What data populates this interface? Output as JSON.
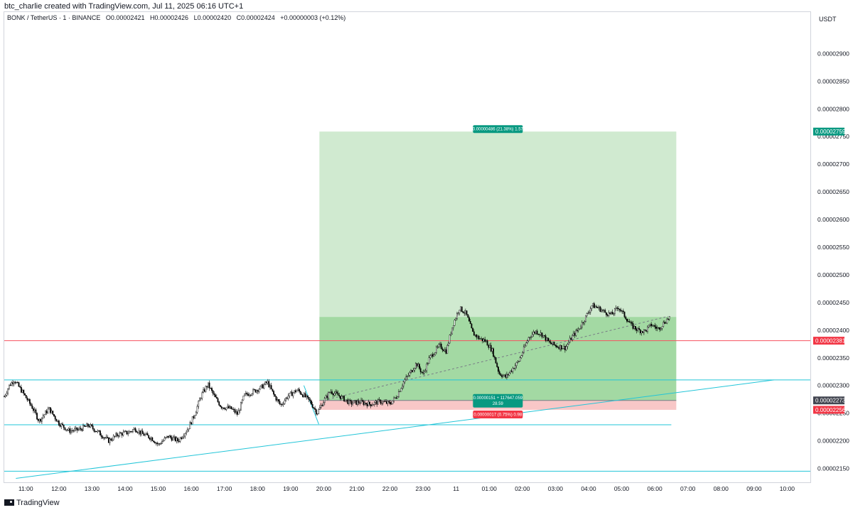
{
  "header": {
    "caption": "btc_charlie created with TradingView.com, Jul 11, 2025 06:16 UTC+1",
    "symbol": "BONK / TetherUS · 1 · BINANCE",
    "ohlc": [
      {
        "label": "O",
        "value": "0.00002421"
      },
      {
        "label": "H",
        "value": "0.00002426"
      },
      {
        "label": "L",
        "value": "0.00002420"
      },
      {
        "label": "C",
        "value": "0.00002424"
      }
    ],
    "change": "+0.00000003 (+0.12%)"
  },
  "footer": {
    "brand": "TradingView"
  },
  "chart_data": {
    "type": "candlestick",
    "currency": "USDT",
    "y_scale_multiplier": 1e-08,
    "ylim": [
      2125,
      2975
    ],
    "xlim_hours": [
      10.35,
      34.7
    ],
    "y_ticks": [
      {
        "v": 2150,
        "label": "0.00002150"
      },
      {
        "v": 2200,
        "label": "0.00002200"
      },
      {
        "v": 2250,
        "label": "0.00002250"
      },
      {
        "v": 2300,
        "label": "0.00002300"
      },
      {
        "v": 2350,
        "label": "0.00002350"
      },
      {
        "v": 2400,
        "label": "0.00002400"
      },
      {
        "v": 2450,
        "label": "0.00002450"
      },
      {
        "v": 2500,
        "label": "0.00002500"
      },
      {
        "v": 2550,
        "label": "0.00002550"
      },
      {
        "v": 2600,
        "label": "0.00002600"
      },
      {
        "v": 2650,
        "label": "0.00002650"
      },
      {
        "v": 2700,
        "label": "0.00002700"
      },
      {
        "v": 2750,
        "label": "0.00002750"
      },
      {
        "v": 2800,
        "label": "0.00002800"
      },
      {
        "v": 2850,
        "label": "0.00002850"
      },
      {
        "v": 2900,
        "label": "0.00002900"
      }
    ],
    "x_ticks": [
      {
        "h": 11,
        "label": "11:00"
      },
      {
        "h": 12,
        "label": "12:00"
      },
      {
        "h": 13,
        "label": "13:00"
      },
      {
        "h": 14,
        "label": "14:00"
      },
      {
        "h": 15,
        "label": "15:00"
      },
      {
        "h": 16,
        "label": "16:00"
      },
      {
        "h": 17,
        "label": "17:00"
      },
      {
        "h": 18,
        "label": "18:00"
      },
      {
        "h": 19,
        "label": "19:00"
      },
      {
        "h": 20,
        "label": "20:00"
      },
      {
        "h": 21,
        "label": "21:00"
      },
      {
        "h": 22,
        "label": "22:00"
      },
      {
        "h": 23,
        "label": "23:00"
      },
      {
        "h": 24,
        "label": "11"
      },
      {
        "h": 25,
        "label": "01:00"
      },
      {
        "h": 26,
        "label": "02:00"
      },
      {
        "h": 27,
        "label": "03:00"
      },
      {
        "h": 28,
        "label": "04:00"
      },
      {
        "h": 29,
        "label": "05:00"
      },
      {
        "h": 30,
        "label": "06:00"
      },
      {
        "h": 31,
        "label": "07:00"
      },
      {
        "h": 32,
        "label": "08:00"
      },
      {
        "h": 33,
        "label": "09:00"
      },
      {
        "h": 34,
        "label": "10:00"
      }
    ],
    "price_path": [
      [
        10.35,
        2280
      ],
      [
        10.5,
        2300
      ],
      [
        10.65,
        2310
      ],
      [
        10.9,
        2288
      ],
      [
        11.2,
        2260
      ],
      [
        11.4,
        2236
      ],
      [
        11.7,
        2258
      ],
      [
        12.0,
        2232
      ],
      [
        12.3,
        2218
      ],
      [
        12.6,
        2220
      ],
      [
        12.9,
        2228
      ],
      [
        13.2,
        2215
      ],
      [
        13.5,
        2200
      ],
      [
        13.8,
        2212
      ],
      [
        14.1,
        2215
      ],
      [
        14.3,
        2222
      ],
      [
        14.5,
        2213
      ],
      [
        14.8,
        2205
      ],
      [
        15.0,
        2193
      ],
      [
        15.3,
        2208
      ],
      [
        15.6,
        2200
      ],
      [
        15.9,
        2222
      ],
      [
        16.1,
        2248
      ],
      [
        16.3,
        2282
      ],
      [
        16.5,
        2302
      ],
      [
        16.7,
        2280
      ],
      [
        16.9,
        2262
      ],
      [
        17.2,
        2258
      ],
      [
        17.4,
        2248
      ],
      [
        17.6,
        2282
      ],
      [
        17.9,
        2290
      ],
      [
        18.1,
        2296
      ],
      [
        18.3,
        2306
      ],
      [
        18.5,
        2282
      ],
      [
        18.7,
        2264
      ],
      [
        18.9,
        2280
      ],
      [
        19.2,
        2292
      ],
      [
        19.4,
        2282
      ],
      [
        19.6,
        2270
      ],
      [
        19.8,
        2250
      ],
      [
        20.0,
        2272
      ],
      [
        20.2,
        2290
      ],
      [
        20.5,
        2280
      ],
      [
        20.8,
        2268
      ],
      [
        21.1,
        2270
      ],
      [
        21.4,
        2266
      ],
      [
        21.7,
        2271
      ],
      [
        22.0,
        2267
      ],
      [
        22.2,
        2280
      ],
      [
        22.4,
        2305
      ],
      [
        22.6,
        2322
      ],
      [
        22.8,
        2340
      ],
      [
        23.0,
        2320
      ],
      [
        23.2,
        2350
      ],
      [
        23.5,
        2372
      ],
      [
        23.7,
        2362
      ],
      [
        23.9,
        2410
      ],
      [
        24.1,
        2440
      ],
      [
        24.3,
        2430
      ],
      [
        24.5,
        2395
      ],
      [
        24.7,
        2385
      ],
      [
        24.9,
        2380
      ],
      [
        25.1,
        2362
      ],
      [
        25.3,
        2322
      ],
      [
        25.5,
        2315
      ],
      [
        25.7,
        2330
      ],
      [
        25.9,
        2345
      ],
      [
        26.2,
        2388
      ],
      [
        26.4,
        2398
      ],
      [
        26.6,
        2392
      ],
      [
        26.8,
        2378
      ],
      [
        27.0,
        2372
      ],
      [
        27.3,
        2368
      ],
      [
        27.5,
        2388
      ],
      [
        27.7,
        2402
      ],
      [
        27.9,
        2422
      ],
      [
        28.1,
        2445
      ],
      [
        28.3,
        2440
      ],
      [
        28.5,
        2432
      ],
      [
        28.7,
        2428
      ],
      [
        28.9,
        2442
      ],
      [
        29.1,
        2425
      ],
      [
        29.3,
        2408
      ],
      [
        29.5,
        2400
      ],
      [
        29.7,
        2398
      ],
      [
        29.9,
        2410
      ],
      [
        30.1,
        2402
      ],
      [
        30.3,
        2415
      ],
      [
        30.45,
        2424
      ]
    ],
    "position": {
      "start_hour": 19.87,
      "end_hour": 30.65,
      "entry": 2273,
      "target": 2759,
      "stop": 2256,
      "label_target": "0.00000486 (21.38%) 1.57",
      "label_entry_1": "0.00000151 ÷ 117647.059",
      "label_entry_2": "28.59",
      "label_stop": "0.00000017 (0.75%) 0.98",
      "current_price_level": 2424
    },
    "horizontal_lines": [
      {
        "price": 2381,
        "color": "#f7525f",
        "x_from_hour": 10.35,
        "x_to_hour": 34.7
      },
      {
        "price": 2310,
        "color": "#22c5d8",
        "x_from_hour": 10.35,
        "x_to_hour": 34.8
      },
      {
        "price": 2229,
        "color": "#22c5d8",
        "x_from_hour": 10.35,
        "x_to_hour": 30.5
      },
      {
        "price": 2145,
        "color": "#22c5d8",
        "x_from_hour": 10.35,
        "x_to_hour": 34.7
      }
    ],
    "trend_lines": [
      {
        "from": [
          10.7,
          2132
        ],
        "to": [
          33.6,
          2310
        ],
        "color": "#22c5d8"
      },
      {
        "from": [
          19.4,
          2300
        ],
        "to": [
          19.85,
          2230
        ],
        "color": "#22c5d8"
      },
      {
        "from": [
          20.0,
          2273
        ],
        "to": [
          30.4,
          2425
        ],
        "color": "#787b86",
        "dashed": true
      }
    ],
    "price_badges": [
      {
        "price": 2759,
        "label": "0.00002759",
        "color": "#089981"
      },
      {
        "price": 2381,
        "label": "0.00002381",
        "color": "#f23645"
      },
      {
        "price": 2273,
        "label": "0.00002273",
        "color": "#434651"
      },
      {
        "price": 2256,
        "label": "0.00002256",
        "color": "#f23645"
      }
    ]
  }
}
